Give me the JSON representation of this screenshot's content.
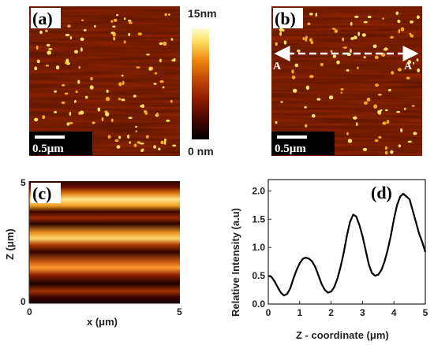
{
  "panels": {
    "a": {
      "label": "(a)",
      "scale_bar": "0.5μm"
    },
    "b": {
      "label": "(b)",
      "scale_bar": "0.5μm",
      "line_start": "A",
      "line_end": "A'"
    },
    "colorbar": {
      "max_label": "15nm",
      "min_label": "0 nm",
      "colors": [
        "#000000",
        "#3a0500",
        "#8b1a00",
        "#c84a00",
        "#f08a10",
        "#ffe060",
        "#fffbd0"
      ]
    },
    "c": {
      "label": "(c)",
      "xlabel": "x (μm)",
      "ylabel": "Z (μm)",
      "x_ticks": [
        "0",
        "5"
      ],
      "y_ticks": [
        "0",
        "5"
      ]
    },
    "d": {
      "label": "(d)"
    }
  },
  "chart_data": {
    "type": "line",
    "xlabel": "Z - coordinate (μm)",
    "ylabel": "Relative Intensity (a.u)",
    "xlim": [
      0,
      5
    ],
    "ylim": [
      0,
      2.2
    ],
    "x_ticks": [
      "0",
      "1",
      "2",
      "3",
      "4",
      "5"
    ],
    "y_ticks": [
      "0.0",
      "0.5",
      "1.0",
      "1.5",
      "2.0"
    ],
    "x": [
      0,
      0.1,
      0.2,
      0.3,
      0.4,
      0.5,
      0.6,
      0.7,
      0.8,
      0.9,
      1.0,
      1.1,
      1.2,
      1.3,
      1.4,
      1.5,
      1.6,
      1.7,
      1.8,
      1.9,
      2.0,
      2.1,
      2.2,
      2.3,
      2.4,
      2.5,
      2.6,
      2.7,
      2.8,
      2.9,
      3.0,
      3.1,
      3.2,
      3.3,
      3.4,
      3.5,
      3.6,
      3.7,
      3.8,
      3.9,
      4.0,
      4.1,
      4.2,
      4.3,
      4.4,
      4.5,
      4.6,
      4.7,
      4.8,
      4.9,
      5.0
    ],
    "series": [
      {
        "values": [
          0.5,
          0.48,
          0.4,
          0.3,
          0.2,
          0.15,
          0.18,
          0.28,
          0.45,
          0.6,
          0.72,
          0.8,
          0.82,
          0.8,
          0.75,
          0.65,
          0.5,
          0.35,
          0.25,
          0.2,
          0.22,
          0.3,
          0.45,
          0.65,
          0.9,
          1.2,
          1.45,
          1.58,
          1.55,
          1.4,
          1.2,
          0.95,
          0.7,
          0.55,
          0.5,
          0.52,
          0.6,
          0.75,
          0.95,
          1.2,
          1.5,
          1.75,
          1.9,
          1.95,
          1.9,
          1.85,
          1.65,
          1.45,
          1.25,
          1.1,
          0.92
        ]
      }
    ]
  }
}
